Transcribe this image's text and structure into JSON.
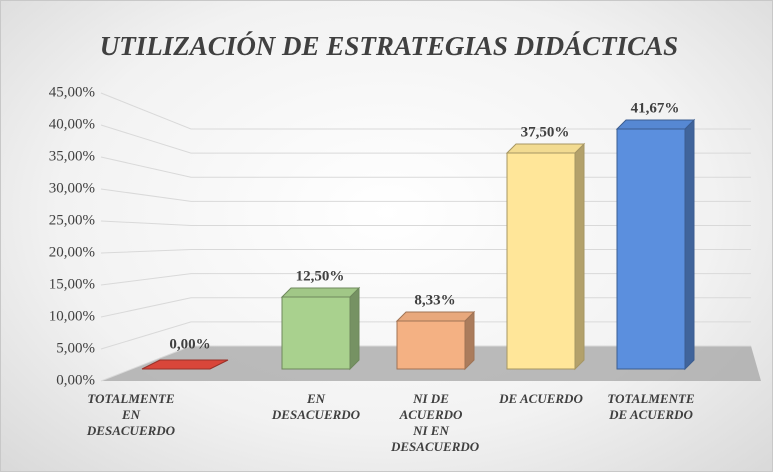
{
  "chart_data": {
    "type": "bar3d",
    "title": "UTILIZACIÓN DE ESTRATEGIAS DIDÁCTICAS",
    "categories": [
      "TOTALMENTE EN DESACUERDO",
      "EN DESACUERDO",
      "NI DE ACUERDO NI EN DESACUERDO",
      "DE ACUERDO",
      "TOTALMENTE DE ACUERDO"
    ],
    "values": [
      0,
      12.5,
      8.33,
      37.5,
      41.67
    ],
    "value_labels": [
      "0,00%",
      "12,50%",
      "8,33%",
      "37,50%",
      "41,67%"
    ],
    "colors": [
      "#d9463a",
      "#a9d18e",
      "#f4b183",
      "#ffe699",
      "#5b8fde"
    ],
    "ylim": [
      0,
      45
    ],
    "yticks": [
      {
        "value": 0,
        "label": "0,00%"
      },
      {
        "value": 5,
        "label": "5,00%"
      },
      {
        "value": 10,
        "label": "10,00%"
      },
      {
        "value": 15,
        "label": "15,00%"
      },
      {
        "value": 20,
        "label": "20,00%"
      },
      {
        "value": 25,
        "label": "25,00%"
      },
      {
        "value": 30,
        "label": "30,00%"
      },
      {
        "value": 35,
        "label": "35,00%"
      },
      {
        "value": 40,
        "label": "40,00%"
      },
      {
        "value": 45,
        "label": "45,00%"
      }
    ],
    "grid": true
  }
}
